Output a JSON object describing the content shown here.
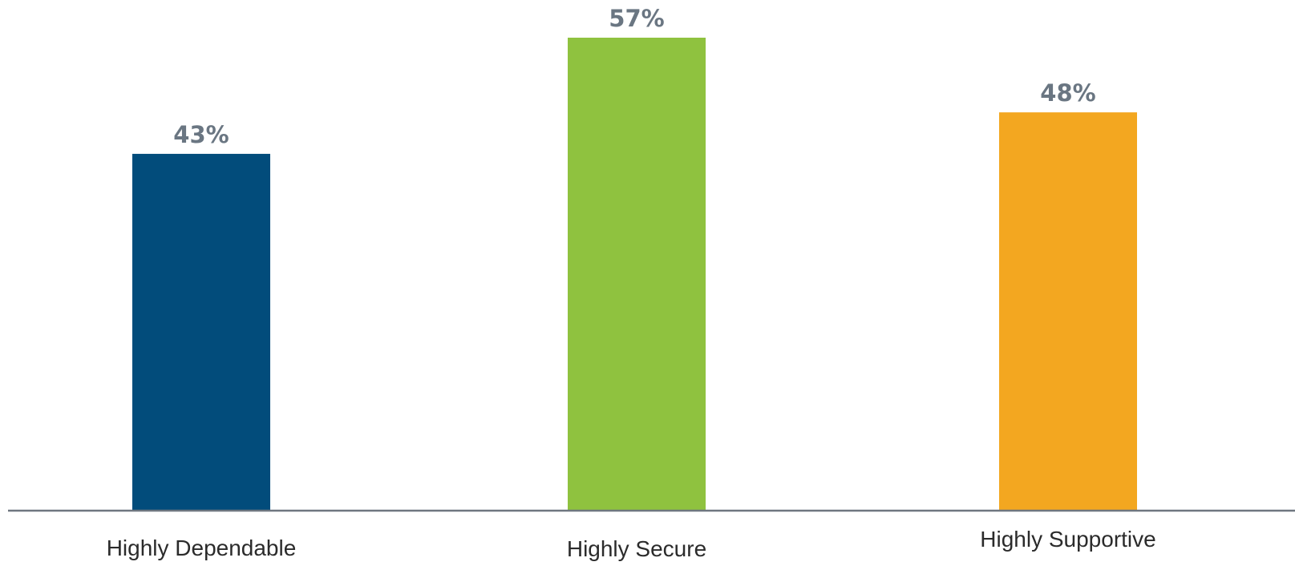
{
  "chart_data": {
    "type": "bar",
    "categories": [
      "Highly Dependable",
      "Highly Secure",
      "Highly Supportive"
    ],
    "values": [
      43,
      57,
      48
    ],
    "value_labels": [
      "43%",
      "57%",
      "48%"
    ],
    "colors": [
      "#024c7b",
      "#8fc23f",
      "#f3a720"
    ],
    "baseline_color": "#6f7780",
    "value_label_color": "#6a7682",
    "ylim": [
      0,
      60
    ],
    "grid": false,
    "legend": "none"
  }
}
